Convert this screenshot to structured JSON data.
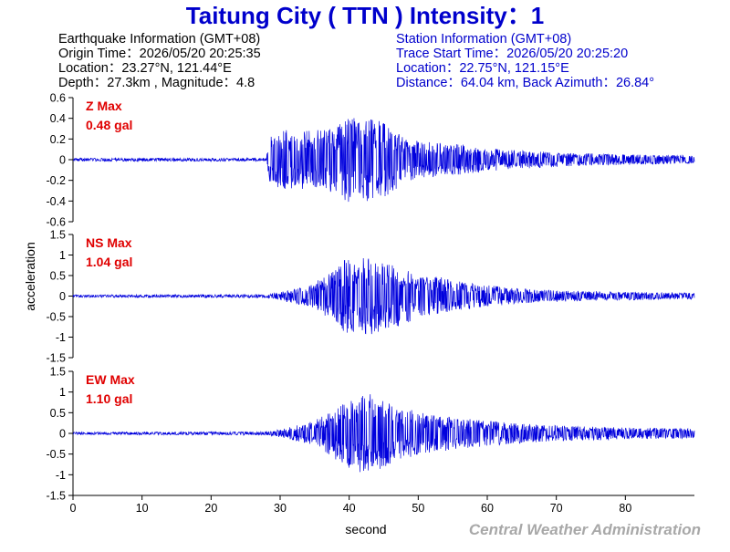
{
  "title": "Taitung City ( TTN ) Intensity：1",
  "earthquake_info": {
    "heading": "Earthquake Information (GMT+08)",
    "origin_time": "Origin Time：2026/05/20 20:25:35",
    "location": "Location：23.27°N, 121.44°E",
    "depth_magnitude": "Depth：27.3km , Magnitude：4.8"
  },
  "station_info": {
    "heading": "Station Information (GMT+08)",
    "trace_start": "Trace Start Time：2026/05/20 20:25:20",
    "location": "Location：22.75°N, 121.15°E",
    "distance": "Distance：64.04 km, Back Azimuth：26.84°"
  },
  "credit": "Central Weather Administration",
  "colors": {
    "trace": "#0000dd",
    "title": "#0000cc",
    "max_label": "#e00000",
    "credit": "#a8a8a8"
  },
  "chart_data": [
    {
      "type": "line",
      "channel": "Z",
      "max_label": "Z Max",
      "max_value": "0.48 gal",
      "peak": 0.48,
      "ylim": [
        -0.6,
        0.6
      ],
      "yticks": [
        "0.6",
        "0.4",
        "0.2",
        "0",
        "-0.2",
        "-0.4",
        "-0.6"
      ],
      "xlim": [
        0,
        90
      ],
      "envelope": [
        [
          0,
          0.015
        ],
        [
          28,
          0.015
        ],
        [
          28.5,
          0.25
        ],
        [
          30,
          0.3
        ],
        [
          35,
          0.28
        ],
        [
          38,
          0.32
        ],
        [
          40,
          0.42
        ],
        [
          42,
          0.44
        ],
        [
          44,
          0.4
        ],
        [
          46,
          0.33
        ],
        [
          48,
          0.22
        ],
        [
          52,
          0.17
        ],
        [
          56,
          0.15
        ],
        [
          62,
          0.1
        ],
        [
          70,
          0.07
        ],
        [
          80,
          0.05
        ],
        [
          90,
          0.04
        ]
      ]
    },
    {
      "type": "line",
      "channel": "NS",
      "max_label": "NS Max",
      "max_value": "1.04 gal",
      "peak": 1.04,
      "ylim": [
        -1.5,
        1.5
      ],
      "yticks": [
        "1.5",
        "1",
        "0.5",
        "0",
        "-0.5",
        "-1",
        "-1.5"
      ],
      "xlim": [
        0,
        90
      ],
      "envelope": [
        [
          0,
          0.03
        ],
        [
          28,
          0.04
        ],
        [
          30,
          0.1
        ],
        [
          34,
          0.25
        ],
        [
          37,
          0.55
        ],
        [
          39,
          0.85
        ],
        [
          41,
          1.0
        ],
        [
          43,
          0.95
        ],
        [
          45,
          0.85
        ],
        [
          47,
          0.8
        ],
        [
          50,
          0.5
        ],
        [
          54,
          0.45
        ],
        [
          58,
          0.3
        ],
        [
          65,
          0.18
        ],
        [
          72,
          0.13
        ],
        [
          80,
          0.1
        ],
        [
          90,
          0.08
        ]
      ]
    },
    {
      "type": "line",
      "channel": "EW",
      "max_label": "EW Max",
      "max_value": "1.10 gal",
      "peak": 1.1,
      "ylim": [
        -1.5,
        1.5
      ],
      "yticks": [
        "1.5",
        "1",
        "0.5",
        "0",
        "-0.5",
        "-1",
        "-1.5"
      ],
      "xlim": [
        0,
        90
      ],
      "envelope": [
        [
          0,
          0.03
        ],
        [
          28,
          0.04
        ],
        [
          30,
          0.1
        ],
        [
          34,
          0.25
        ],
        [
          37,
          0.5
        ],
        [
          39,
          0.75
        ],
        [
          41,
          0.95
        ],
        [
          42,
          1.0
        ],
        [
          44,
          0.9
        ],
        [
          46,
          0.75
        ],
        [
          48,
          0.6
        ],
        [
          51,
          0.5
        ],
        [
          55,
          0.4
        ],
        [
          60,
          0.3
        ],
        [
          68,
          0.2
        ],
        [
          78,
          0.15
        ],
        [
          90,
          0.12
        ]
      ]
    }
  ],
  "x_axis": {
    "label": "second",
    "ticks": [
      "0",
      "10",
      "20",
      "30",
      "40",
      "50",
      "60",
      "70",
      "80"
    ],
    "tick_values": [
      0,
      10,
      20,
      30,
      40,
      50,
      60,
      70,
      80
    ]
  },
  "y_axis": {
    "label": "acceleration"
  }
}
